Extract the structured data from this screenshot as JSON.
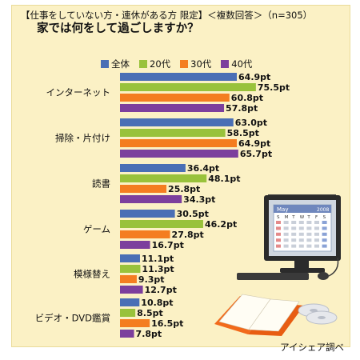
{
  "header": {
    "line1": "【仕事をしていない方・連休がある方 限定】＜複数回答＞（n=305）",
    "line2": "家では何をして過ごしますか？"
  },
  "credit": "アイシェア調べ",
  "colors": {
    "all": "#4a6fb5",
    "20s": "#99c23b",
    "30s": "#f47d20",
    "40s": "#7c3f9d"
  },
  "chart_data": {
    "type": "bar",
    "orientation": "horizontal",
    "value_suffix": "pt",
    "categories": [
      "インターネット",
      "掃除・片付け",
      "読書",
      "ゲーム",
      "模様替え",
      "ビデオ・DVD鑑賞"
    ],
    "series": [
      {
        "name": "全体",
        "color": "#4a6fb5",
        "values": [
          64.9,
          63.0,
          36.4,
          30.5,
          11.1,
          10.8
        ]
      },
      {
        "name": "20代",
        "color": "#99c23b",
        "values": [
          75.5,
          58.5,
          48.1,
          46.2,
          11.3,
          8.5
        ]
      },
      {
        "name": "30代",
        "color": "#f47d20",
        "values": [
          60.8,
          64.9,
          25.8,
          27.8,
          9.3,
          16.5
        ]
      },
      {
        "name": "40代",
        "color": "#7c3f9d",
        "values": [
          57.8,
          65.7,
          34.3,
          16.7,
          12.7,
          7.8
        ]
      }
    ],
    "legend_position": "top",
    "grid": false
  },
  "calendar": {
    "month": "May",
    "year": "2008",
    "weekdays": [
      "S",
      "M",
      "T",
      "W",
      "T",
      "F",
      "S"
    ]
  }
}
